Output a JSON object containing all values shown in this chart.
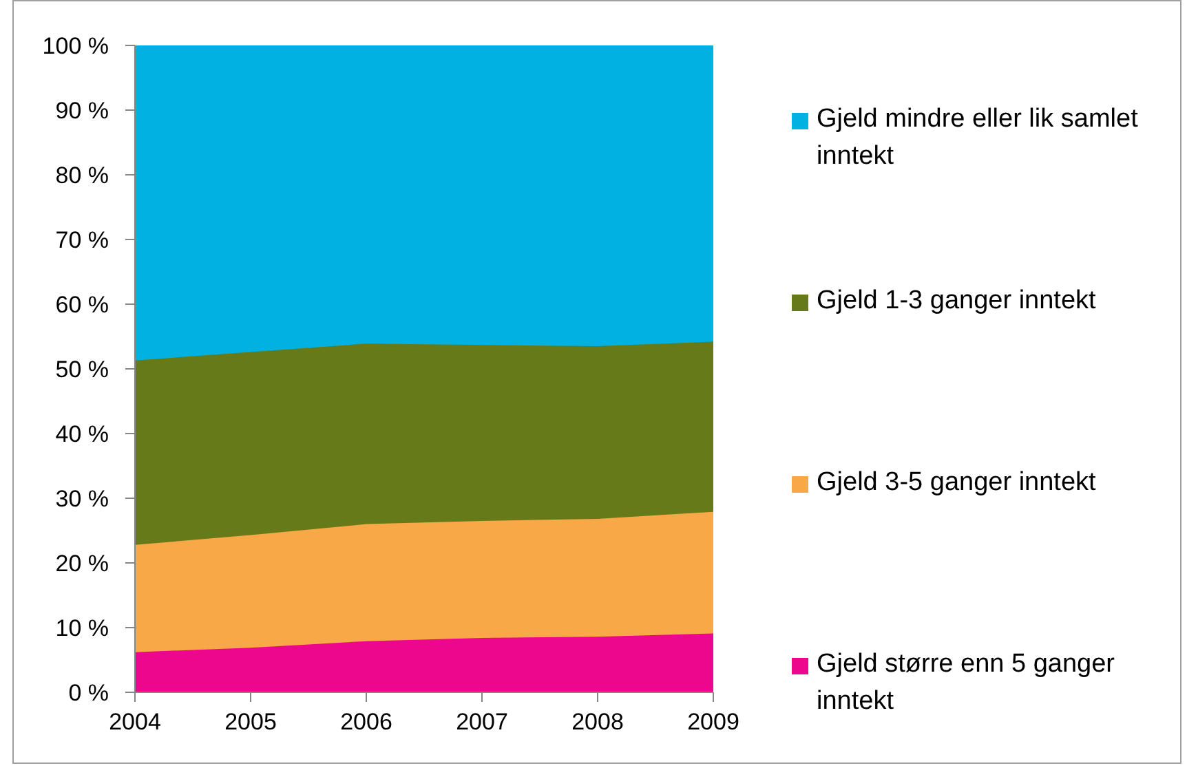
{
  "chart_data": {
    "type": "area",
    "stacked": true,
    "legend": "right",
    "x": [
      2004,
      2005,
      2006,
      2007,
      2008,
      2009
    ],
    "xlim": [
      2004,
      2009
    ],
    "xticks": [
      2004,
      2005,
      2006,
      2007,
      2008,
      2009
    ],
    "ylim": [
      0,
      100
    ],
    "yticks": [
      {
        "value": 0,
        "label": "0 %"
      },
      {
        "value": 10,
        "label": "10 %"
      },
      {
        "value": 20,
        "label": "20 %"
      },
      {
        "value": 30,
        "label": "30 %"
      },
      {
        "value": 40,
        "label": "40 %"
      },
      {
        "value": 50,
        "label": "50 %"
      },
      {
        "value": 60,
        "label": "60 %"
      },
      {
        "value": 70,
        "label": "70 %"
      },
      {
        "value": 80,
        "label": "80 %"
      },
      {
        "value": 90,
        "label": "90 %"
      },
      {
        "value": 100,
        "label": "100 %"
      }
    ],
    "series": [
      {
        "name": "Gjeld større enn 5 ganger inntekt",
        "color": "#ec078d",
        "values": [
          6.2,
          6.9,
          7.9,
          8.4,
          8.6,
          9.1
        ]
      },
      {
        "name": "Gjeld 3-5 ganger inntekt",
        "color": "#f9a848",
        "values": [
          16.6,
          17.4,
          18.1,
          18.1,
          18.2,
          18.8
        ]
      },
      {
        "name": "Gjeld 1-3 ganger inntekt",
        "color": "#677a1a",
        "values": [
          28.5,
          28.3,
          27.9,
          27.2,
          26.7,
          26.3
        ]
      },
      {
        "name": "Gjeld mindre eller lik samlet inntekt",
        "color": "#00b1e1",
        "values": [
          48.7,
          47.4,
          46.1,
          46.3,
          46.5,
          45.8
        ]
      }
    ]
  }
}
